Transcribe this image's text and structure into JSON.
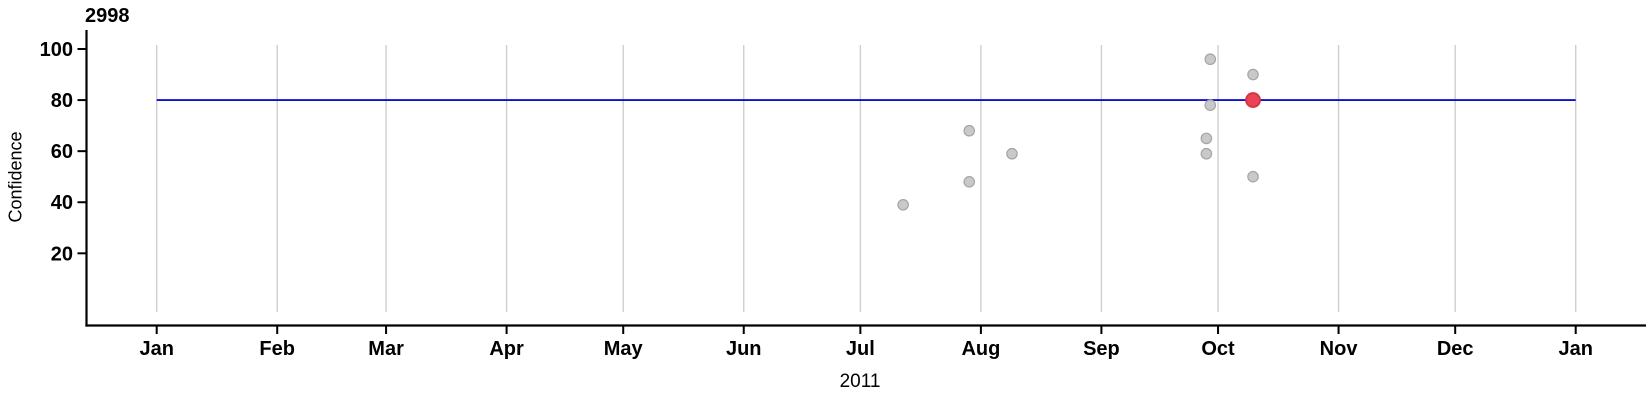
{
  "chart_data": {
    "type": "scatter",
    "title": "2998",
    "xlabel": "2011",
    "ylabel": "Confidence",
    "legend": "none",
    "grid": "vertical month gridlines only",
    "x_axis": {
      "start_date": "2011-01-01",
      "end_date": "2012-01-01",
      "tick_labels": [
        "Jan",
        "Feb",
        "Mar",
        "Apr",
        "May",
        "Jun",
        "Jul",
        "Aug",
        "Sep",
        "Oct",
        "Nov",
        "Dec",
        "Jan"
      ]
    },
    "y_axis": {
      "tick_labels": [
        "100",
        "80",
        "60",
        "40",
        "20"
      ],
      "tick_values": [
        100,
        80,
        60,
        40,
        20
      ],
      "ylim": [
        -3,
        102
      ]
    },
    "reference_line": {
      "value": 80,
      "span": [
        "2011-01-01",
        "2012-01-01"
      ],
      "color": "#0f0fcd"
    },
    "points": [
      {
        "date": "2011-07-12",
        "value": 39,
        "highlighted": false
      },
      {
        "date": "2011-07-29",
        "value": 68,
        "highlighted": false
      },
      {
        "date": "2011-07-29",
        "value": 48,
        "highlighted": false
      },
      {
        "date": "2011-08-09",
        "value": 59,
        "highlighted": false
      },
      {
        "date": "2011-09-28",
        "value": 65,
        "highlighted": false
      },
      {
        "date": "2011-09-28",
        "value": 59,
        "highlighted": false
      },
      {
        "date": "2011-09-29",
        "value": 96,
        "highlighted": false
      },
      {
        "date": "2011-09-29",
        "value": 78,
        "highlighted": false
      },
      {
        "date": "2011-10-10",
        "value": 90,
        "highlighted": false
      },
      {
        "date": "2011-10-10",
        "value": 50,
        "highlighted": false
      },
      {
        "date": "2011-10-10",
        "value": 80,
        "highlighted": true
      }
    ],
    "colors": {
      "point_fill": "#c9c9c9",
      "point_stroke": "#a5a5a5",
      "highlight_fill": "#ea4454",
      "highlight_stroke": "#d23446",
      "reference_line": "#0f0fcd",
      "gridline": "#cfcfcf",
      "axis": "#000000",
      "background": "#ffffff"
    }
  }
}
